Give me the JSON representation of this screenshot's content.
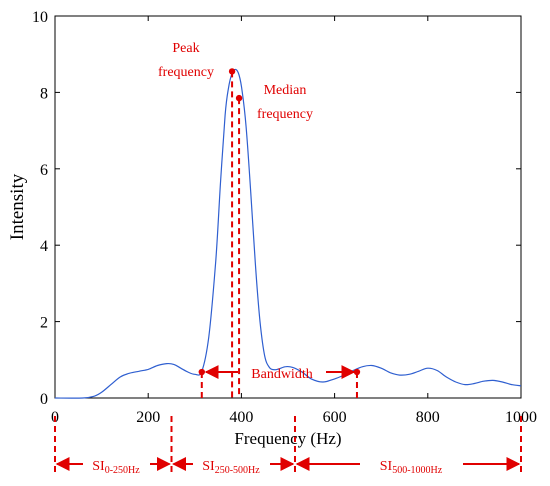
{
  "chart_data": {
    "type": "line",
    "xlabel": "Frequency (Hz)",
    "ylabel": "Intensity",
    "xlim": [
      0,
      1000
    ],
    "ylim": [
      0,
      10
    ],
    "x_ticks": [
      0,
      200,
      400,
      600,
      800,
      1000
    ],
    "y_ticks": [
      0,
      2,
      4,
      6,
      8,
      10
    ],
    "grid": false,
    "colors": {
      "line": "#2f5fd0",
      "annotation": "#e00000",
      "axis": "#000000"
    },
    "series": [
      {
        "x": [
          0,
          60,
          85,
          100,
          120,
          140,
          160,
          180,
          200,
          220,
          240,
          255,
          270,
          285,
          300,
          315,
          330,
          345,
          355,
          365,
          372,
          380,
          388,
          395,
          402,
          410,
          420,
          430,
          440,
          450,
          460,
          470,
          480,
          495,
          510,
          530,
          550,
          575,
          600,
          620,
          640,
          660,
          680,
          700,
          720,
          740,
          760,
          780,
          800,
          820,
          840,
          860,
          880,
          900,
          920,
          940,
          960,
          980,
          1000
        ],
        "y": [
          0,
          0,
          0.05,
          0.15,
          0.35,
          0.55,
          0.65,
          0.7,
          0.75,
          0.85,
          0.9,
          0.88,
          0.78,
          0.68,
          0.62,
          0.7,
          1.6,
          3.6,
          5.6,
          7.4,
          8.1,
          8.5,
          8.6,
          8.45,
          8.0,
          7.1,
          5.4,
          3.5,
          2.0,
          1.1,
          0.8,
          0.74,
          0.76,
          0.82,
          0.8,
          0.68,
          0.5,
          0.42,
          0.5,
          0.6,
          0.72,
          0.82,
          0.85,
          0.78,
          0.66,
          0.6,
          0.62,
          0.7,
          0.78,
          0.72,
          0.55,
          0.42,
          0.35,
          0.38,
          0.44,
          0.46,
          0.42,
          0.35,
          0.32
        ]
      }
    ],
    "annotations": {
      "peak": {
        "label_lines": [
          "Peak",
          "frequency"
        ],
        "x": 380,
        "y": 8.55
      },
      "median": {
        "label_lines": [
          "Median",
          "frequency"
        ],
        "x": 395,
        "y": 7.85
      },
      "bandwidth": {
        "label": "Bandwidth",
        "x1": 315,
        "x2": 648,
        "y": 0.68
      },
      "bands": [
        {
          "label_main": "SI",
          "label_sub": "0-250Hz",
          "x1": 0,
          "x2": 250
        },
        {
          "label_main": "SI",
          "label_sub": "250-500Hz",
          "x1": 250,
          "x2": 515
        },
        {
          "label_main": "SI",
          "label_sub": "500-1000Hz",
          "x1": 515,
          "x2": 1000
        }
      ]
    }
  }
}
